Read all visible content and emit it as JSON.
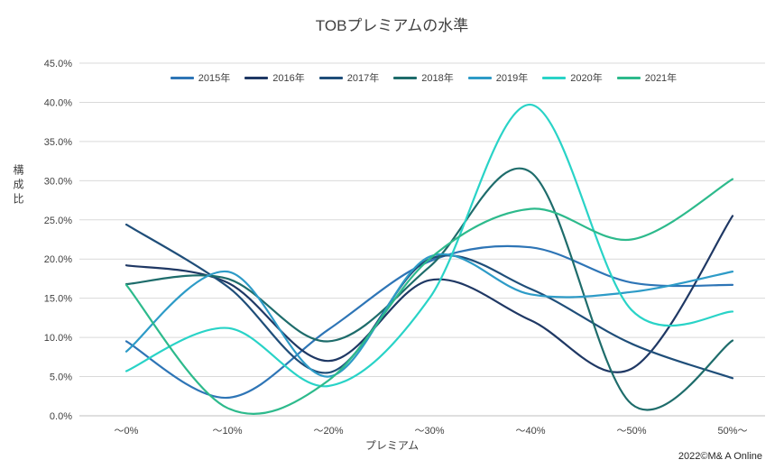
{
  "footer": {
    "credit": "2022©M& A Online"
  },
  "chart_data": {
    "type": "line",
    "title": "TOBプレミアムの水準",
    "xlabel": "プレミアム",
    "ylabel": "構成比",
    "categories": [
      "〜0%",
      "〜10%",
      "〜20%",
      "〜30%",
      "〜40%",
      "〜50%",
      "50%〜"
    ],
    "ylim": [
      0,
      45
    ],
    "ytick_step": 5,
    "ytick_labels": [
      "0.0%",
      "5.0%",
      "10.0%",
      "15.0%",
      "20.0%",
      "25.0%",
      "30.0%",
      "35.0%",
      "40.0%",
      "45.0%"
    ],
    "grid": true,
    "legend_position": "top",
    "grid_color": "#d9d9d9",
    "axis_color": "#bfbfbf",
    "text_color": "#404040",
    "series": [
      {
        "name": "2015年",
        "color": "#2E75B6",
        "values": [
          9.5,
          2.3,
          11.0,
          19.7,
          21.5,
          17.0,
          16.7
        ]
      },
      {
        "name": "2016年",
        "color": "#1F3864",
        "values": [
          19.2,
          17.0,
          7.0,
          17.3,
          12.2,
          6.0,
          25.5
        ]
      },
      {
        "name": "2017年",
        "color": "#1F4E79",
        "values": [
          24.4,
          16.5,
          5.5,
          20.0,
          16.2,
          9.2,
          4.8
        ]
      },
      {
        "name": "2018年",
        "color": "#1E6C6B",
        "values": [
          16.8,
          17.5,
          9.5,
          19.0,
          31.1,
          1.5,
          9.6
        ]
      },
      {
        "name": "2019年",
        "color": "#2D9BC7",
        "values": [
          8.2,
          18.4,
          5.0,
          20.3,
          15.5,
          15.8,
          18.4
        ]
      },
      {
        "name": "2020年",
        "color": "#29D3C7",
        "values": [
          5.7,
          11.2,
          3.8,
          15.0,
          39.7,
          13.5,
          13.3
        ]
      },
      {
        "name": "2021年",
        "color": "#2DBA8C",
        "values": [
          16.7,
          1.0,
          4.5,
          20.0,
          26.4,
          22.5,
          30.2
        ]
      }
    ]
  }
}
